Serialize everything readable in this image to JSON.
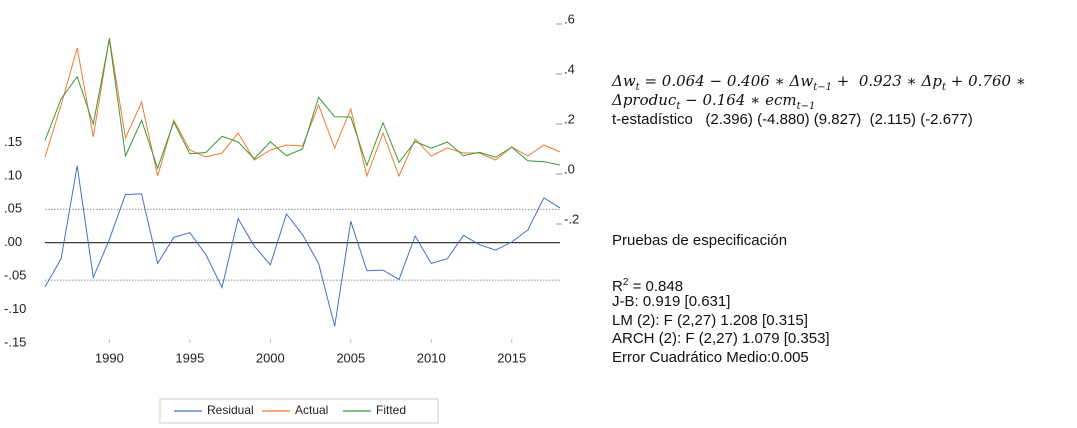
{
  "chart_data": {
    "type": "line",
    "x": [
      1986,
      1987,
      1988,
      1989,
      1990,
      1991,
      1992,
      1993,
      1994,
      1995,
      1996,
      1997,
      1998,
      1999,
      2000,
      2001,
      2002,
      2003,
      2004,
      2005,
      2006,
      2007,
      2008,
      2009,
      2010,
      2011,
      2012,
      2013,
      2014,
      2015,
      2016,
      2017,
      2018
    ],
    "xlim": [
      1986,
      2018
    ],
    "xticks": [
      1990,
      1995,
      2000,
      2005,
      2010,
      2015
    ],
    "ylim": [
      -0.15,
      0.333
    ],
    "yticks": [
      {
        "value": 0.15,
        "label": ".15"
      },
      {
        "value": 0.1,
        "label": ".10"
      },
      {
        "value": 0.05,
        "label": ".05"
      },
      {
        "value": 0,
        "label": ".00"
      },
      {
        "value": -0.05,
        "label": "-.05"
      },
      {
        "value": -0.1,
        "label": "-.10"
      },
      {
        "value": -0.15,
        "label": "-.15"
      }
    ],
    "y2lim": [
      -0.692,
      0.6
    ],
    "y2ticks": [
      {
        "value": 0.6,
        "label": ".6"
      },
      {
        "value": 0.4,
        "label": ".4"
      },
      {
        "value": 0.2,
        "label": ".2"
      },
      {
        "value": 0,
        "label": ".0"
      },
      {
        "value": -0.2,
        "label": "-.2"
      }
    ],
    "hlines": [
      {
        "value": 0,
        "style": "solid"
      },
      {
        "value": 0.05,
        "style": "dotted"
      },
      {
        "value": -0.056,
        "style": "dotted"
      }
    ],
    "series": [
      {
        "name": "Residual",
        "color": "#4472c4",
        "axis": "y",
        "values": [
          -0.066,
          -0.024,
          0.115,
          -0.052,
          0.005,
          0.072,
          0.073,
          -0.031,
          0.008,
          0.015,
          -0.018,
          -0.067,
          0.036,
          -0.005,
          -0.033,
          0.043,
          0.012,
          -0.031,
          -0.125,
          0.032,
          -0.042,
          -0.041,
          -0.055,
          0.01,
          -0.031,
          -0.024,
          0.011,
          -0.003,
          -0.011,
          0.001,
          0.019,
          0.067,
          0.052
        ]
      },
      {
        "name": "Actual",
        "color": "#ed7d31",
        "axis": "y2",
        "values": [
          0.052,
          0.26,
          0.488,
          0.132,
          0.528,
          0.128,
          0.272,
          -0.024,
          0.2,
          0.08,
          0.052,
          0.068,
          0.148,
          0.04,
          0.08,
          0.1,
          0.096,
          0.26,
          0.088,
          0.244,
          -0.024,
          0.148,
          -0.024,
          0.124,
          0.056,
          0.088,
          0.068,
          0.068,
          0.04,
          0.092,
          0.056,
          0.1,
          0.072
        ]
      },
      {
        "name": "Fitted",
        "color": "#3a9a3a",
        "axis": "y2",
        "values": [
          0.118,
          0.284,
          0.373,
          0.184,
          0.523,
          0.056,
          0.199,
          0.007,
          0.192,
          0.065,
          0.07,
          0.135,
          0.112,
          0.045,
          0.113,
          0.057,
          0.084,
          0.291,
          0.213,
          0.212,
          0.018,
          0.189,
          0.031,
          0.114,
          0.087,
          0.112,
          0.057,
          0.071,
          0.051,
          0.091,
          0.037,
          0.033,
          0.02
        ]
      }
    ]
  },
  "equation": {
    "line1": [
      {
        "text": "Δw",
        "sub": "t"
      },
      {
        "text": " = 0.064 − 0.406 ∗ Δw",
        "sub": "t−1"
      },
      {
        "text": " +  0.923 ∗ Δp",
        "sub": "t"
      },
      {
        "text": " + 0.760 ∗"
      }
    ],
    "line2": [
      {
        "text": "Δproduc",
        "sub": "t"
      },
      {
        "text": " − 0.164 ∗ ecm",
        "sub": "t−1"
      }
    ],
    "t_stats": "t-estadístico   (2.396) (-4.880) (9.827)  (2.115) (-2.677)"
  },
  "tests": {
    "title": "Pruebas de especificación",
    "r2": {
      "base": "R",
      "sup": "2",
      "text": " = 0.848"
    },
    "lines": [
      "J-B: 0.919 [0.631]",
      "LM (2): F (2,27) 1.208 [0.315]",
      "ARCH (2): F (2,27) 1.079 [0.353]",
      "Error Cuadrático Medio:0.005"
    ]
  }
}
